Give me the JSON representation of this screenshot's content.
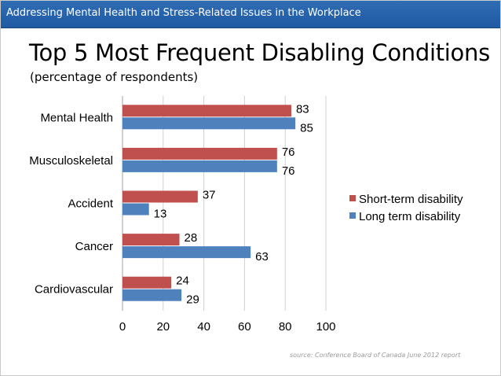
{
  "header": {
    "text": "Addressing Mental Health and Stress-Related Issues in the Workplace"
  },
  "title": "Top 5 Most Frequent Disabling Conditions",
  "subtitle": "(percentage of respondents)",
  "source": "source: Conference Board of Canada June 2012 report",
  "chart_data": {
    "type": "bar",
    "orientation": "horizontal",
    "categories": [
      "Mental Health",
      "Musculoskeletal",
      "Accident",
      "Cancer",
      "Cardiovascular"
    ],
    "series": [
      {
        "name": "Short-term disability",
        "color": "#c0504d",
        "values": [
          83,
          76,
          37,
          28,
          24
        ]
      },
      {
        "name": "Long term disability",
        "color": "#4f81bd",
        "values": [
          85,
          76,
          13,
          63,
          29
        ]
      }
    ],
    "xlim": [
      0,
      100
    ],
    "xticks": [
      "0",
      "20",
      "40",
      "60",
      "80",
      "100"
    ],
    "grid": true,
    "legend": "right"
  }
}
